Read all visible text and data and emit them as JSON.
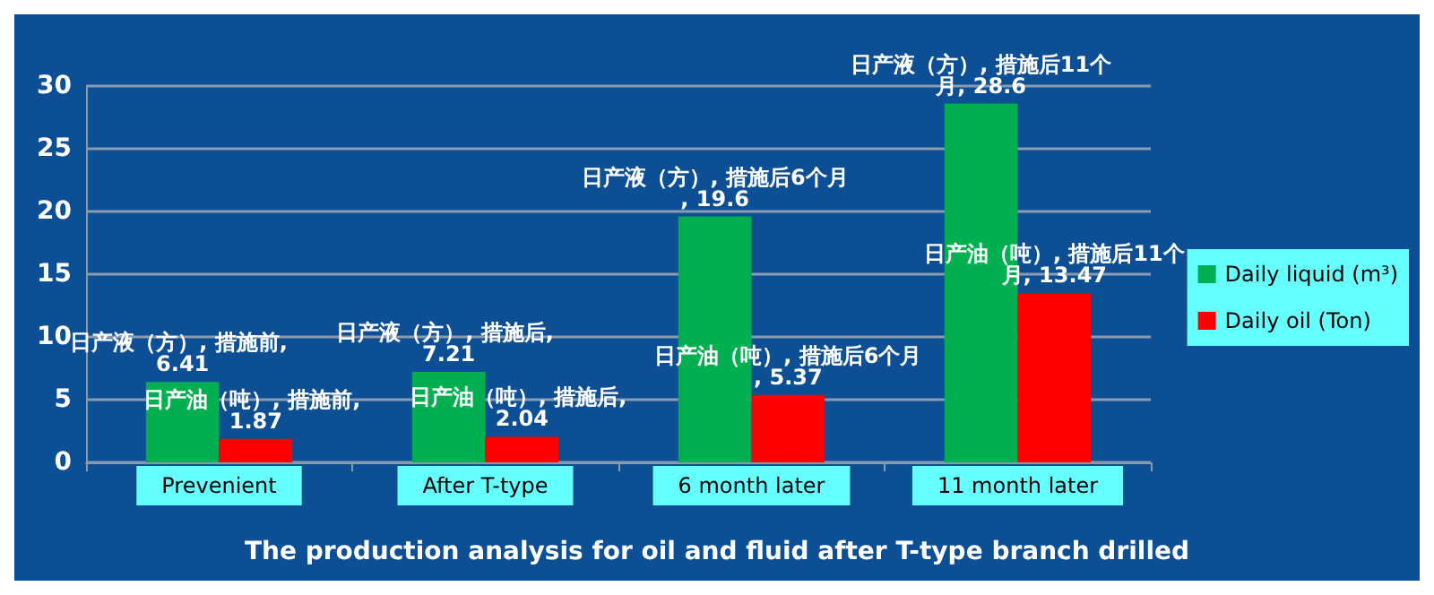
{
  "chart_data": {
    "type": "bar",
    "title": "The production analysis for oil and fluid after T-type branch drilled",
    "categories": [
      "Prevenient",
      "After T-type",
      "6 month later",
      "11 month later"
    ],
    "series": [
      {
        "name": "Daily liquid (m³)",
        "color": "#00b050",
        "values": [
          6.41,
          7.21,
          19.6,
          28.6
        ],
        "value_labels": [
          "日产液（方）, 措施前, 6.41",
          "日产液（方）, 措施后, 7.21",
          "日产液（方）, 措施后6个月, 19.6",
          "日产液（方）, 措施后11个月, 28.6"
        ]
      },
      {
        "name": "Daily oil (Ton)",
        "color": "#ff0000",
        "values": [
          1.87,
          2.04,
          5.37,
          13.47
        ],
        "value_labels": [
          "日产油（吨）, 措施前, 1.87",
          "日产油（吨）, 措施后, 2.04",
          "日产油（吨）, 措施后6个月, 5.37",
          "日产油（吨）, 措施后11个月, 13.47"
        ]
      }
    ],
    "ylim": [
      0,
      30
    ],
    "yticks": [
      0,
      5,
      10,
      15,
      20,
      25,
      30
    ],
    "grid": "y",
    "legend": "right"
  }
}
